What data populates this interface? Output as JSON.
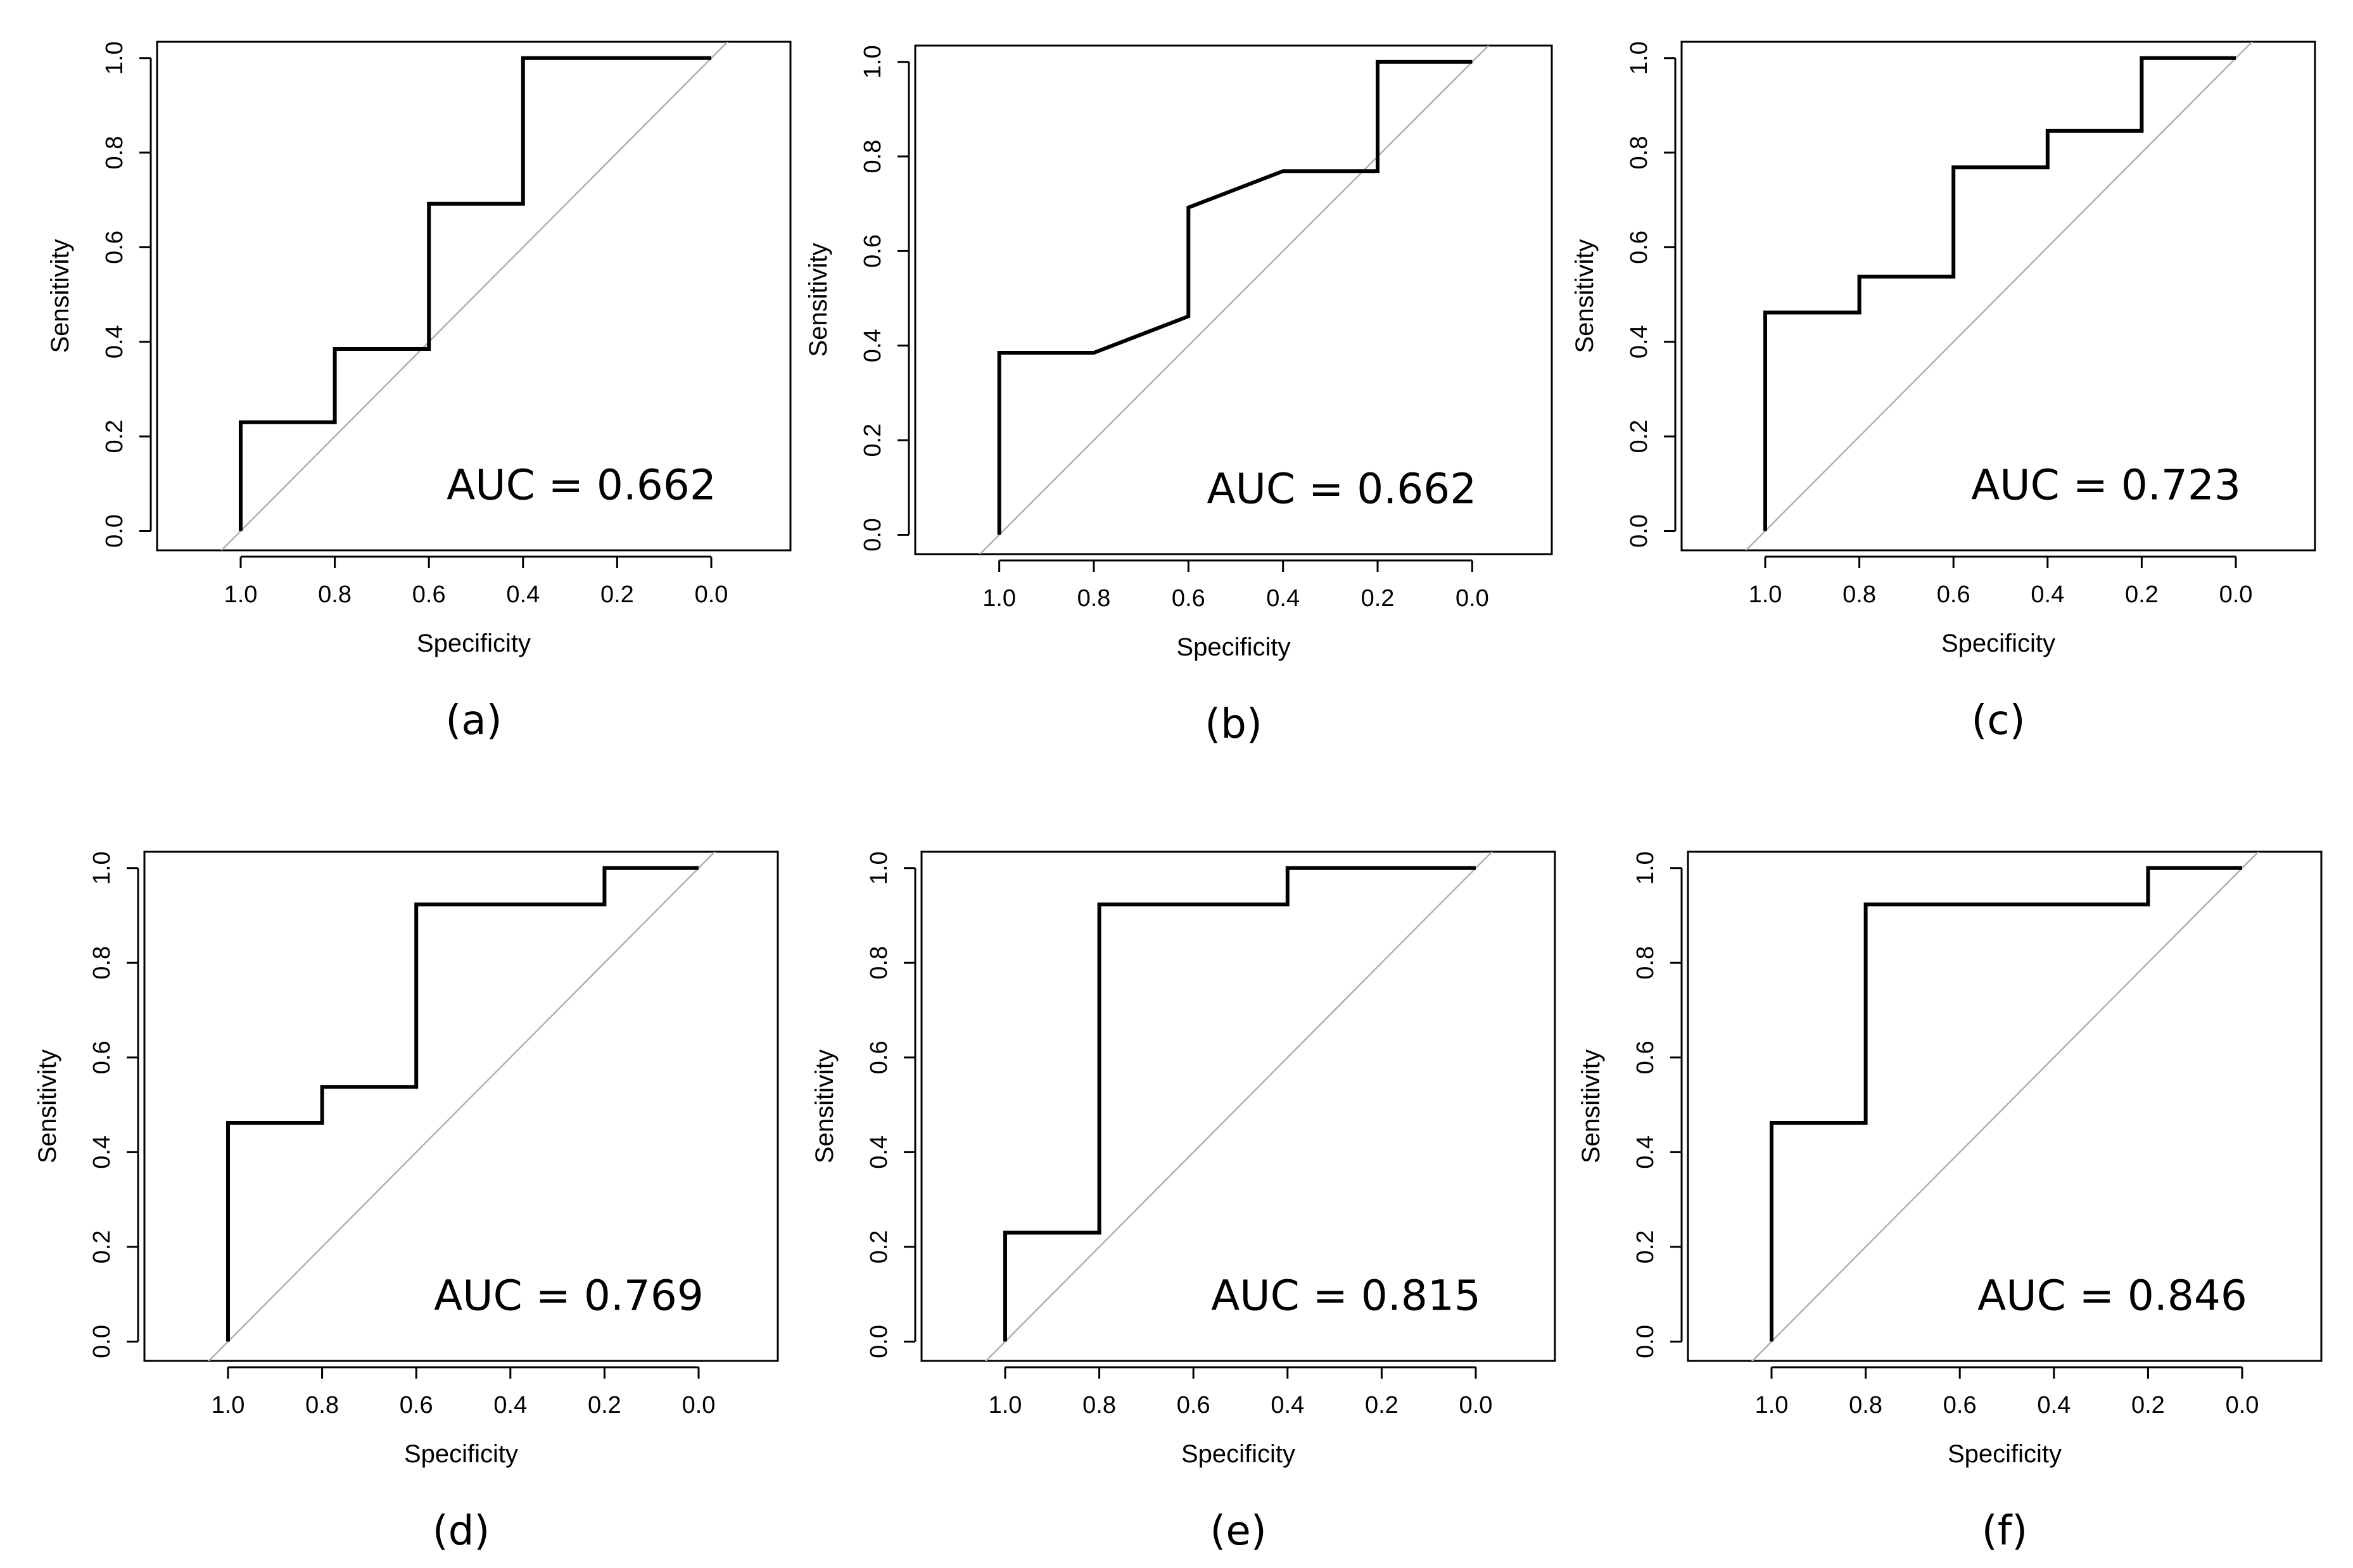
{
  "chart_data": [
    {
      "type": "line",
      "panel_label": "(a)",
      "xlabel": "Specificity",
      "ylabel": "Sensitivity",
      "x_reversed": true,
      "xlim": [
        1.0,
        0.0
      ],
      "ylim": [
        0.0,
        1.0
      ],
      "x_ticks": [
        "1.0",
        "0.8",
        "0.6",
        "0.4",
        "0.2",
        "0.0"
      ],
      "y_ticks": [
        "0.0",
        "0.2",
        "0.4",
        "0.6",
        "0.8",
        "1.0"
      ],
      "annotation": "AUC = 0.662",
      "series": [
        {
          "x": [
            1.0,
            1.0,
            0.8,
            0.8,
            0.6,
            0.6,
            0.4,
            0.4,
            0.0
          ],
          "y": [
            0.0,
            0.23,
            0.23,
            0.385,
            0.385,
            0.692,
            0.692,
            1.0,
            1.0
          ]
        }
      ],
      "reference_line": {
        "x": [
          1.0,
          0.0
        ],
        "y": [
          0.0,
          1.0
        ]
      }
    },
    {
      "type": "line",
      "panel_label": "(b)",
      "xlabel": "Specificity",
      "ylabel": "Sensitivity",
      "x_reversed": true,
      "xlim": [
        1.0,
        0.0
      ],
      "ylim": [
        0.0,
        1.0
      ],
      "x_ticks": [
        "1.0",
        "0.8",
        "0.6",
        "0.4",
        "0.2",
        "0.0"
      ],
      "y_ticks": [
        "0.0",
        "0.2",
        "0.4",
        "0.6",
        "0.8",
        "1.0"
      ],
      "annotation": "AUC = 0.662",
      "series": [
        {
          "x": [
            1.0,
            1.0,
            0.8,
            0.6,
            0.6,
            0.4,
            0.2,
            0.2,
            0.0
          ],
          "y": [
            0.0,
            0.385,
            0.385,
            0.462,
            0.692,
            0.769,
            0.769,
            1.0,
            1.0
          ]
        }
      ],
      "reference_line": {
        "x": [
          1.0,
          0.0
        ],
        "y": [
          0.0,
          1.0
        ]
      }
    },
    {
      "type": "line",
      "panel_label": "(c)",
      "xlabel": "Specificity",
      "ylabel": "Sensitivity",
      "x_reversed": true,
      "xlim": [
        1.0,
        0.0
      ],
      "ylim": [
        0.0,
        1.0
      ],
      "x_ticks": [
        "1.0",
        "0.8",
        "0.6",
        "0.4",
        "0.2",
        "0.0"
      ],
      "y_ticks": [
        "0.0",
        "0.2",
        "0.4",
        "0.6",
        "0.8",
        "1.0"
      ],
      "annotation": "AUC = 0.723",
      "series": [
        {
          "x": [
            1.0,
            1.0,
            0.8,
            0.8,
            0.6,
            0.6,
            0.4,
            0.4,
            0.2,
            0.2,
            0.0
          ],
          "y": [
            0.0,
            0.462,
            0.462,
            0.538,
            0.538,
            0.769,
            0.769,
            0.846,
            0.846,
            1.0,
            1.0
          ]
        }
      ],
      "reference_line": {
        "x": [
          1.0,
          0.0
        ],
        "y": [
          0.0,
          1.0
        ]
      }
    },
    {
      "type": "line",
      "panel_label": "(d)",
      "xlabel": "Specificity",
      "ylabel": "Sensitivity",
      "x_reversed": true,
      "xlim": [
        1.0,
        0.0
      ],
      "ylim": [
        0.0,
        1.0
      ],
      "x_ticks": [
        "1.0",
        "0.8",
        "0.6",
        "0.4",
        "0.2",
        "0.0"
      ],
      "y_ticks": [
        "0.0",
        "0.2",
        "0.4",
        "0.6",
        "0.8",
        "1.0"
      ],
      "annotation": "AUC = 0.769",
      "series": [
        {
          "x": [
            1.0,
            1.0,
            0.8,
            0.8,
            0.6,
            0.6,
            0.2,
            0.2,
            0.0
          ],
          "y": [
            0.0,
            0.462,
            0.462,
            0.538,
            0.538,
            0.923,
            0.923,
            1.0,
            1.0
          ]
        }
      ],
      "reference_line": {
        "x": [
          1.0,
          0.0
        ],
        "y": [
          0.0,
          1.0
        ]
      }
    },
    {
      "type": "line",
      "panel_label": "(e)",
      "xlabel": "Specificity",
      "ylabel": "Sensitivity",
      "x_reversed": true,
      "xlim": [
        1.0,
        0.0
      ],
      "ylim": [
        0.0,
        1.0
      ],
      "x_ticks": [
        "1.0",
        "0.8",
        "0.6",
        "0.4",
        "0.2",
        "0.0"
      ],
      "y_ticks": [
        "0.0",
        "0.2",
        "0.4",
        "0.6",
        "0.8",
        "1.0"
      ],
      "annotation": "AUC = 0.815",
      "series": [
        {
          "x": [
            1.0,
            1.0,
            0.8,
            0.8,
            0.4,
            0.4,
            0.0
          ],
          "y": [
            0.0,
            0.23,
            0.23,
            0.923,
            0.923,
            1.0,
            1.0
          ]
        }
      ],
      "reference_line": {
        "x": [
          1.0,
          0.0
        ],
        "y": [
          0.0,
          1.0
        ]
      }
    },
    {
      "type": "line",
      "panel_label": "(f)",
      "xlabel": "Specificity",
      "ylabel": "Sensitivity",
      "x_reversed": true,
      "xlim": [
        1.0,
        0.0
      ],
      "ylim": [
        0.0,
        1.0
      ],
      "x_ticks": [
        "1.0",
        "0.8",
        "0.6",
        "0.4",
        "0.2",
        "0.0"
      ],
      "y_ticks": [
        "0.0",
        "0.2",
        "0.4",
        "0.6",
        "0.8",
        "1.0"
      ],
      "annotation": "AUC = 0.846",
      "series": [
        {
          "x": [
            1.0,
            1.0,
            0.8,
            0.8,
            0.2,
            0.2,
            0.0
          ],
          "y": [
            0.0,
            0.462,
            0.462,
            0.923,
            0.923,
            1.0,
            1.0
          ]
        }
      ],
      "reference_line": {
        "x": [
          1.0,
          0.0
        ],
        "y": [
          0.0,
          1.0
        ]
      }
    }
  ],
  "colors": {
    "curve": "#000000",
    "reference_line": "#b0b0b0",
    "frame": "#000000",
    "background": "#ffffff"
  }
}
